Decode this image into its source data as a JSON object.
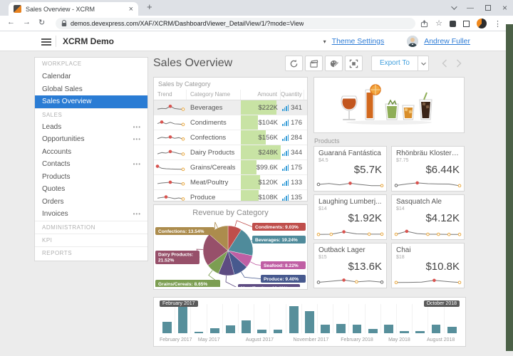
{
  "browser": {
    "tab_title": "Sales Overview - XCRM",
    "new_tab_label": "+",
    "url": "demos.devexpress.com/XAF/XCRM/DashboardViewer_DetailView/1/?mode=View"
  },
  "header": {
    "app_title": "XCRM Demo",
    "theme_settings_label": "Theme Settings",
    "user_name": "Andrew Fuller"
  },
  "sidebar": {
    "sections": [
      {
        "label": "WORKPLACE",
        "items": [
          {
            "label": "Calendar"
          },
          {
            "label": "Global Sales"
          },
          {
            "label": "Sales Overview",
            "selected": true
          }
        ]
      },
      {
        "label": "SALES",
        "items": [
          {
            "label": "Leads",
            "dots": true
          },
          {
            "label": "Opportunities",
            "dots": true
          },
          {
            "label": "Accounts"
          },
          {
            "label": "Contacts",
            "dots": true
          },
          {
            "label": "Products"
          },
          {
            "label": "Quotes"
          },
          {
            "label": "Orders"
          },
          {
            "label": "Invoices",
            "dots": true
          }
        ]
      },
      {
        "label": "ADMINISTRATION",
        "items": []
      },
      {
        "label": "KPI",
        "items": []
      },
      {
        "label": "REPORTS",
        "items": []
      }
    ]
  },
  "main": {
    "page_title": "Sales Overview",
    "toolbar": {
      "export_label": "Export To"
    }
  },
  "colors": {
    "selection_blue": "#2a7cd4",
    "link_blue": "#2e7cd6",
    "export_blue": "#42a0dd",
    "amount_bar_green": "#c8e3a4",
    "quantity_bar_blue": "#3b9fd8",
    "range_bar_teal": "#578f9b",
    "spark_line": "#777777",
    "marker_red": "#d9534f",
    "marker_orange": "#e9a83f",
    "marker_dark": "#666666",
    "desktop_strip_green": "#4c6147"
  },
  "chart_data": [
    {
      "id": "sales_by_category",
      "type": "table",
      "title": "Sales by Category",
      "columns": [
        "Trend",
        "Category Name",
        "Amount",
        "Quantity"
      ],
      "max_amount_k": 248,
      "rows": [
        {
          "category": "Beverages",
          "amount": "$222K",
          "amount_k": 222,
          "quantity": 341,
          "bar_pct": 90,
          "selected": true,
          "trend": {
            "points": [
              30,
              42,
              38,
              75,
              40,
              32,
              28
            ],
            "markers": [
              {
                "i": 3,
                "c": "red"
              },
              {
                "i": 6,
                "c": "orange"
              }
            ]
          }
        },
        {
          "category": "Condiments",
          "amount": "$104K",
          "amount_k": 104,
          "quantity": 176,
          "bar_pct": 42,
          "trend": {
            "points": [
              38,
              62,
              35,
              58,
              34,
              30,
              24
            ],
            "markers": [
              {
                "i": 1,
                "c": "red"
              },
              {
                "i": 6,
                "c": "orange"
              }
            ]
          }
        },
        {
          "category": "Confections",
          "amount": "$156K",
          "amount_k": 156,
          "quantity": 284,
          "bar_pct": 63,
          "trend": {
            "points": [
              36,
              58,
              48,
              62,
              42,
              52,
              30
            ],
            "markers": [
              {
                "i": 3,
                "c": "red"
              },
              {
                "i": 6,
                "c": "orange"
              }
            ]
          }
        },
        {
          "category": "Dairy Products",
          "amount": "$248K",
          "amount_k": 248,
          "quantity": 344,
          "bar_pct": 100,
          "trend": {
            "points": [
              32,
              52,
              44,
              68,
              56,
              38,
              28
            ],
            "markers": [
              {
                "i": 3,
                "c": "red"
              },
              {
                "i": 6,
                "c": "orange"
              }
            ]
          }
        },
        {
          "category": "Grains/Cereals",
          "amount": "$99.6K",
          "amount_k": 99.6,
          "quantity": 175,
          "bar_pct": 40,
          "trend": {
            "points": [
              72,
              40,
              34,
              30,
              28,
              26,
              24
            ],
            "markers": [
              {
                "i": 0,
                "c": "red"
              },
              {
                "i": 6,
                "c": "orange"
              }
            ]
          }
        },
        {
          "category": "Meat/Poultry",
          "amount": "$120K",
          "amount_k": 120,
          "quantity": 133,
          "bar_pct": 48,
          "trend": {
            "points": [
              34,
              44,
              50,
              56,
              46,
              40,
              30
            ],
            "markers": [
              {
                "i": 3,
                "c": "red"
              },
              {
                "i": 6,
                "c": "orange"
              }
            ]
          }
        },
        {
          "category": "Produce",
          "amount": "$108K",
          "amount_k": 108,
          "quantity": 135,
          "bar_pct": 44,
          "trend": {
            "points": [
              40,
              52,
              60,
              48,
              34,
              44,
              28
            ],
            "markers": [
              {
                "i": 2,
                "c": "red"
              },
              {
                "i": 6,
                "c": "orange"
              }
            ]
          }
        }
      ]
    },
    {
      "id": "revenue_by_category",
      "type": "pie",
      "title": "Revenue by Category",
      "slices": [
        {
          "label": "Condiments",
          "pct": 9.03,
          "color": "#bf4e4b"
        },
        {
          "label": "Beverages",
          "pct": 19.24,
          "color": "#4f8b9b"
        },
        {
          "label": "Seafood",
          "pct": 8.22,
          "color": "#c05fa4"
        },
        {
          "label": "Produce",
          "pct": 9.4,
          "color": "#47598e"
        },
        {
          "label": "Meat/Poultry",
          "pct": 10.4,
          "color": "#5d4b82"
        },
        {
          "label": "Grains/Cereals",
          "pct": 8.65,
          "color": "#7c9e52"
        },
        {
          "label": "Dairy Products",
          "pct": 21.52,
          "color": "#97506a"
        },
        {
          "label": "Confections",
          "pct": 13.54,
          "color": "#ac8c4d"
        }
      ]
    },
    {
      "id": "products",
      "type": "sparkline-cards",
      "title": "Products",
      "items": [
        {
          "name": "Guaraná Fantástica",
          "price": "$4.5",
          "value": "$5.7K",
          "spark": {
            "points": [
              45,
              58,
              38,
              62,
              42,
              25,
              25
            ],
            "markers": [
              {
                "i": 0,
                "c": "dark"
              },
              {
                "i": 3,
                "c": "red"
              },
              {
                "i": 6,
                "c": "orange"
              }
            ]
          }
        },
        {
          "name": "Rhönbräu Klosterbi...",
          "price": "$7.75",
          "value": "$6.44K",
          "spark": {
            "points": [
              28,
              52,
              68,
              55,
              52,
              50,
              24
            ],
            "markers": [
              {
                "i": 0,
                "c": "dark"
              },
              {
                "i": 2,
                "c": "red"
              },
              {
                "i": 6,
                "c": "orange"
              }
            ]
          }
        },
        {
          "name": "Laughing Lumberj...",
          "price": "$14",
          "value": "$1.92K",
          "spark": {
            "points": [
              20,
              22,
              60,
              28,
              24,
              24
            ],
            "markers": [
              {
                "i": 0,
                "c": "orange"
              },
              {
                "i": 1,
                "c": "orange"
              },
              {
                "i": 2,
                "c": "red"
              },
              {
                "i": 4,
                "c": "orange"
              },
              {
                "i": 5,
                "c": "orange"
              }
            ]
          }
        },
        {
          "name": "Sasquatch Ale",
          "price": "$14",
          "value": "$4.12K",
          "spark": {
            "points": [
              22,
              68,
              32,
              22,
              22,
              20,
              20
            ],
            "markers": [
              {
                "i": 0,
                "c": "orange"
              },
              {
                "i": 1,
                "c": "red"
              },
              {
                "i": 3,
                "c": "orange"
              },
              {
                "i": 4,
                "c": "orange"
              },
              {
                "i": 5,
                "c": "orange"
              },
              {
                "i": 6,
                "c": "orange"
              }
            ]
          }
        },
        {
          "name": "Outback Lager",
          "price": "$15",
          "value": "$13.6K",
          "spark": {
            "points": [
              28,
              45,
              62,
              35,
              48,
              30
            ],
            "markers": [
              {
                "i": 0,
                "c": "dark"
              },
              {
                "i": 2,
                "c": "red"
              },
              {
                "i": 3,
                "c": "orange"
              },
              {
                "i": 5,
                "c": "dark"
              }
            ]
          }
        },
        {
          "name": "Chai",
          "price": "$18",
          "value": "$10.8K",
          "spark": {
            "points": [
              25,
              27,
              30,
              58,
              40,
              25
            ],
            "markers": [
              {
                "i": 0,
                "c": "orange"
              },
              {
                "i": 3,
                "c": "red"
              },
              {
                "i": 5,
                "c": "orange"
              }
            ]
          }
        }
      ]
    },
    {
      "id": "sales_timeline",
      "type": "bar",
      "range_start": "February 2017",
      "range_end": "October 2018",
      "values": [
        40,
        100,
        5,
        18,
        26,
        44,
        12,
        12,
        92,
        76,
        30,
        31,
        30,
        14,
        30,
        7,
        7,
        30,
        22
      ],
      "x_ticks": [
        {
          "index": 0,
          "label": "February 2017"
        },
        {
          "index": 3,
          "label": "May 2017"
        },
        {
          "index": 6,
          "label": "August 2017"
        },
        {
          "index": 9,
          "label": "November 2017"
        },
        {
          "index": 12,
          "label": "February 2018"
        },
        {
          "index": 15,
          "label": "May 2018"
        },
        {
          "index": 18,
          "label": "August 2018"
        }
      ],
      "ylim": [
        0,
        100
      ]
    }
  ]
}
